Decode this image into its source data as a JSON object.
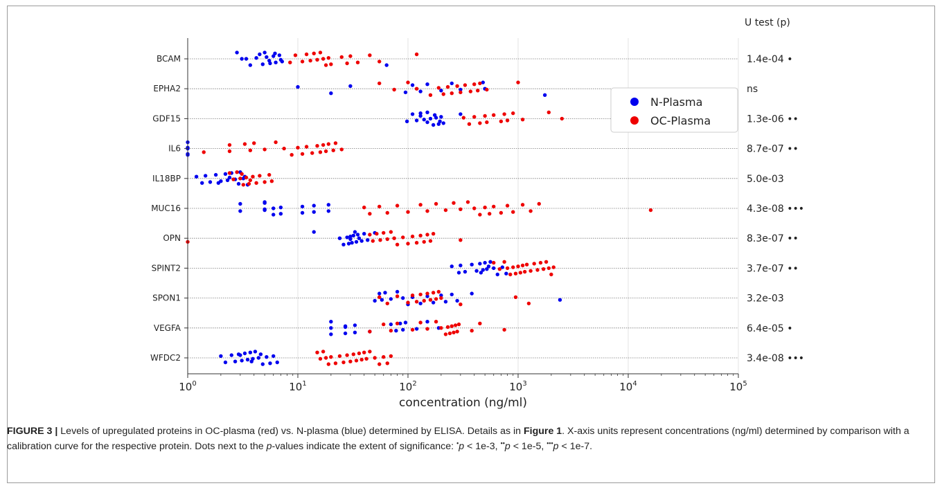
{
  "chart_data": {
    "type": "scatter",
    "xlabel": "concentration (ng/ml)",
    "xscale": "log",
    "xlim": [
      1,
      100000
    ],
    "xticks": [
      "10^0",
      "10^1",
      "10^2",
      "10^3",
      "10^4",
      "10^5"
    ],
    "grid": "vertical major gridlines and horizontal dotted row lines",
    "legend_position": "upper-right",
    "stats_header": "U test (p)",
    "categories": [
      "BCAM",
      "EPHA2",
      "GDF15",
      "IL6",
      "IL18BP",
      "MUC16",
      "OPN",
      "SPINT2",
      "SPON1",
      "VEGFA",
      "WFDC2"
    ],
    "stats": [
      "1.4e-04 •",
      "ns",
      "1.3e-06 ••",
      "8.7e-07 ••",
      "5.0e-03",
      "4.3e-08 •••",
      "8.3e-07 ••",
      "3.7e-07 ••",
      "3.2e-03",
      "6.4e-05 •",
      "3.4e-08 •••"
    ],
    "series": [
      {
        "name": "N-Plasma",
        "color": "#0000ee",
        "points": {
          "BCAM": [
            2.8,
            3.1,
            3.7,
            4.2,
            4.8,
            5.2,
            5.6,
            6.0,
            6.3,
            6.8,
            7.2,
            4.5,
            5.5,
            6.2,
            7.0,
            5.0,
            3.4,
            64
          ],
          "EPHA2": [
            10,
            20,
            30,
            95,
            110,
            130,
            150,
            200,
            250,
            300,
            480,
            500,
            1750
          ],
          "GDF15": [
            98,
            110,
            120,
            130,
            140,
            150,
            160,
            170,
            180,
            190,
            200,
            210,
            130,
            150,
            175,
            195,
            300
          ],
          "IL6": [
            1.0,
            1.0,
            1.0,
            1.0,
            1.0
          ],
          "IL18BP": [
            1.2,
            1.35,
            1.45,
            1.6,
            1.8,
            2.0,
            2.2,
            2.3,
            2.5,
            2.7,
            3.0,
            3.2,
            3.5,
            2.4,
            2.9,
            3.3,
            1.9
          ],
          "MUC16": [
            3,
            3,
            5,
            5,
            5,
            5,
            6,
            6,
            7,
            7,
            11,
            11,
            14,
            14,
            19,
            19
          ],
          "OPN": [
            14,
            24,
            26,
            28,
            29,
            30,
            31,
            32,
            34,
            35,
            38,
            40,
            43,
            50,
            30,
            33,
            36
          ],
          "SPINT2": [
            250,
            290,
            300,
            330,
            380,
            420,
            450,
            480,
            500,
            520,
            560,
            600,
            650,
            720,
            780,
            540,
            460
          ],
          "SPON1": [
            50,
            55,
            58,
            62,
            70,
            80,
            90,
            100,
            110,
            130,
            150,
            170,
            200,
            220,
            250,
            280,
            380,
            2400
          ],
          "VEGFA": [
            20,
            20,
            20,
            27,
            27,
            27,
            33,
            33,
            45,
            70,
            78,
            85,
            90,
            95,
            120,
            150,
            190
          ],
          "WFDC2": [
            2.0,
            2.2,
            2.5,
            2.7,
            2.9,
            3.1,
            3.3,
            3.5,
            3.7,
            3.9,
            4.1,
            4.4,
            4.8,
            5.2,
            5.6,
            6.0,
            6.5,
            3.0,
            3.8,
            4.6
          ]
        }
      },
      {
        "name": "OC-Plasma",
        "color": "#ee0000",
        "points": {
          "BCAM": [
            8.5,
            9.5,
            11,
            12,
            13,
            14,
            15,
            16,
            17,
            18,
            19,
            20,
            25,
            28,
            30,
            35,
            45,
            55,
            120
          ],
          "EPHA2": [
            55,
            75,
            100,
            120,
            160,
            190,
            210,
            230,
            250,
            280,
            300,
            330,
            370,
            400,
            430,
            450,
            520,
            1000
          ],
          "GDF15": [
            320,
            360,
            400,
            450,
            500,
            520,
            600,
            700,
            750,
            800,
            900,
            1100,
            1900,
            2500
          ],
          "IL6": [
            1.4,
            2.4,
            2.4,
            3.3,
            3.7,
            4.0,
            5.0,
            6.3,
            7.5,
            8.8,
            10,
            11,
            12,
            13.5,
            15,
            16,
            17,
            18,
            19,
            21,
            22,
            25
          ],
          "IL18BP": [
            2.4,
            2.6,
            2.8,
            3.0,
            3.2,
            3.4,
            3.6,
            3.9,
            4.2,
            4.5,
            5.0,
            5.5,
            5.8,
            3.1,
            3.7
          ],
          "MUC16": [
            40,
            45,
            55,
            65,
            80,
            100,
            130,
            150,
            180,
            220,
            260,
            300,
            350,
            400,
            450,
            500,
            550,
            600,
            700,
            800,
            900,
            1100,
            1300,
            1550,
            16000
          ],
          "OPN": [
            1.0,
            45,
            48,
            52,
            56,
            60,
            65,
            70,
            75,
            80,
            90,
            100,
            110,
            120,
            130,
            140,
            150,
            160,
            170,
            300
          ],
          "SPINT2": [
            600,
            680,
            750,
            800,
            850,
            900,
            950,
            1000,
            1050,
            1100,
            1150,
            1200,
            1300,
            1400,
            1500,
            1600,
            1700,
            1800,
            1900,
            2000,
            2100
          ],
          "SPON1": [
            55,
            65,
            80,
            100,
            110,
            120,
            130,
            140,
            150,
            160,
            170,
            180,
            190,
            200,
            300,
            950,
            1250
          ],
          "VEGFA": [
            45,
            60,
            70,
            80,
            110,
            130,
            150,
            180,
            200,
            220,
            230,
            240,
            250,
            260,
            270,
            280,
            290,
            380,
            450,
            750
          ],
          "WFDC2": [
            15,
            16,
            17,
            18,
            19,
            20,
            22,
            24,
            26,
            28,
            30,
            32,
            34,
            36,
            38,
            40,
            42,
            45,
            50,
            55,
            60,
            65,
            70
          ]
        }
      }
    ]
  },
  "caption": {
    "label": "FIGURE 3 |",
    "text_1": " Levels of upregulated proteins in OC-plasma (red) vs. N-plasma (blue) determined by ELISA. Details as in ",
    "ref": "Figure 1",
    "text_2": ". X-axis units represent concentrations (ng/ml) determined by comparison with a calibration curve for the respective protein. Dots next to the ",
    "p_word": "p",
    "text_3": "-values indicate the extent of significance: ",
    "sig1_dots": "•",
    "sig1_p": "p",
    "sig1_rest": " < 1e-3, ",
    "sig2_dots": "••",
    "sig2_p": "p",
    "sig2_rest": " < 1e-5, ",
    "sig3_dots": "•••",
    "sig3_p": "p",
    "sig3_rest": " < 1e-7."
  }
}
